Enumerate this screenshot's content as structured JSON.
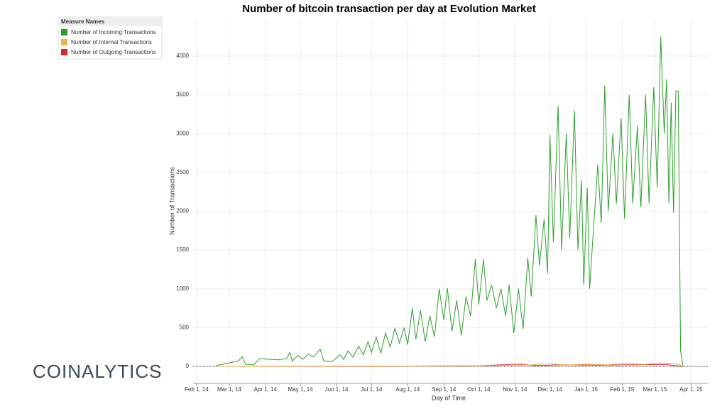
{
  "chart_data": {
    "type": "line",
    "title": "Number of bitcoin transaction per day at Evolution Market",
    "x_label": "Day of Time",
    "y_label": "Number of Transactions",
    "legend_title": "Measure Names",
    "legend_position": "upper-left",
    "logo": "COINALYTICS",
    "grid": true,
    "xlim": [
      "2014-01-29",
      "2015-04-16"
    ],
    "xticks": [
      {
        "value": "2014-02-01",
        "label": "Feb 1, 14"
      },
      {
        "value": "2014-03-01",
        "label": "Mar 1, 14"
      },
      {
        "value": "2014-04-01",
        "label": "Apr 1, 14"
      },
      {
        "value": "2014-05-01",
        "label": "May 1, 14"
      },
      {
        "value": "2014-06-01",
        "label": "Jun 1, 14"
      },
      {
        "value": "2014-07-01",
        "label": "Jul 1, 14"
      },
      {
        "value": "2014-08-01",
        "label": "Aug 1, 14"
      },
      {
        "value": "2014-09-01",
        "label": "Sep 1, 14"
      },
      {
        "value": "2014-10-01",
        "label": "Oct 1, 14"
      },
      {
        "value": "2014-11-01",
        "label": "Nov 1, 14"
      },
      {
        "value": "2014-12-01",
        "label": "Dec 1, 14"
      },
      {
        "value": "2015-01-01",
        "label": "Jan 1, 15"
      },
      {
        "value": "2015-02-01",
        "label": "Feb 1, 15"
      },
      {
        "value": "2015-03-01",
        "label": "Mar 1, 15"
      },
      {
        "value": "2015-04-01",
        "label": "Apr 1, 15"
      }
    ],
    "ylim": [
      -220,
      4467
    ],
    "yticks": [
      0,
      500,
      1000,
      1500,
      2000,
      2500,
      3000,
      3500,
      4000
    ],
    "series": [
      {
        "name": "Number of Incoming Transactions",
        "color": "#2ca02c",
        "x": [
          "2014-02-18",
          "2014-02-24",
          "2014-03-03",
          "2014-03-09",
          "2014-03-12",
          "2014-03-15",
          "2014-03-22",
          "2014-03-27",
          "2014-04-05",
          "2014-04-12",
          "2014-04-19",
          "2014-04-22",
          "2014-04-24",
          "2014-04-29",
          "2014-05-03",
          "2014-05-08",
          "2014-05-12",
          "2014-05-18",
          "2014-05-21",
          "2014-05-28",
          "2014-06-04",
          "2014-06-07",
          "2014-06-11",
          "2014-06-15",
          "2014-06-20",
          "2014-06-24",
          "2014-06-28",
          "2014-07-01",
          "2014-07-05",
          "2014-07-09",
          "2014-07-13",
          "2014-07-17",
          "2014-07-21",
          "2014-07-25",
          "2014-07-29",
          "2014-08-01",
          "2014-08-05",
          "2014-08-08",
          "2014-08-12",
          "2014-08-16",
          "2014-08-20",
          "2014-08-24",
          "2014-08-28",
          "2014-09-01",
          "2014-09-04",
          "2014-09-08",
          "2014-09-12",
          "2014-09-16",
          "2014-09-20",
          "2014-09-24",
          "2014-09-28",
          "2014-10-01",
          "2014-10-05",
          "2014-10-08",
          "2014-10-12",
          "2014-10-16",
          "2014-10-20",
          "2014-10-24",
          "2014-10-27",
          "2014-10-31",
          "2014-11-04",
          "2014-11-08",
          "2014-11-12",
          "2014-11-15",
          "2014-11-19",
          "2014-11-22",
          "2014-11-26",
          "2014-11-29",
          "2014-12-01",
          "2014-12-04",
          "2014-12-08",
          "2014-12-11",
          "2014-12-15",
          "2014-12-18",
          "2014-12-22",
          "2014-12-25",
          "2014-12-28",
          "2014-12-30",
          "2015-01-02",
          "2015-01-04",
          "2015-01-07",
          "2015-01-11",
          "2015-01-14",
          "2015-01-17",
          "2015-01-20",
          "2015-01-24",
          "2015-01-27",
          "2015-01-31",
          "2015-02-03",
          "2015-02-07",
          "2015-02-10",
          "2015-02-14",
          "2015-02-17",
          "2015-02-21",
          "2015-02-24",
          "2015-02-28",
          "2015-03-03",
          "2015-03-06",
          "2015-03-09",
          "2015-03-11",
          "2015-03-13",
          "2015-03-15",
          "2015-03-17",
          "2015-03-19",
          "2015-03-21",
          "2015-03-23",
          "2015-03-25"
        ],
        "values": [
          10,
          30,
          50,
          70,
          125,
          25,
          20,
          100,
          90,
          85,
          100,
          180,
          70,
          140,
          90,
          160,
          120,
          220,
          70,
          60,
          150,
          90,
          200,
          120,
          260,
          150,
          320,
          180,
          380,
          170,
          430,
          250,
          490,
          300,
          500,
          280,
          750,
          350,
          720,
          320,
          650,
          380,
          1000,
          600,
          1010,
          450,
          850,
          400,
          900,
          650,
          1380,
          800,
          1380,
          850,
          1050,
          750,
          1000,
          650,
          1050,
          430,
          1000,
          480,
          1400,
          900,
          1950,
          1300,
          1900,
          1200,
          2980,
          1600,
          3360,
          1500,
          3000,
          1650,
          3300,
          1500,
          2400,
          1050,
          2300,
          1000,
          1700,
          2600,
          1850,
          3620,
          2000,
          3000,
          2100,
          3200,
          1900,
          3500,
          2100,
          3100,
          2050,
          3500,
          2100,
          3600,
          2300,
          4250,
          3000,
          3700,
          2100,
          3400,
          1980,
          3550,
          3550,
          200,
          10
        ]
      },
      {
        "name": "Number of Internal Transactions",
        "color": "#f5b041",
        "x": [
          "2014-02-18",
          "2014-06-01",
          "2014-09-01",
          "2014-10-15",
          "2014-11-15",
          "2014-12-01",
          "2014-12-15",
          "2015-01-01",
          "2015-01-20",
          "2015-02-01",
          "2015-02-20",
          "2015-03-05",
          "2015-03-20",
          "2015-03-25"
        ],
        "values": [
          0,
          2,
          5,
          10,
          20,
          35,
          15,
          30,
          20,
          40,
          25,
          45,
          35,
          0
        ]
      },
      {
        "name": "Number of Outgoing Transactions",
        "color": "#d62728",
        "x": [
          "2014-02-18",
          "2014-07-01",
          "2014-10-01",
          "2014-11-05",
          "2014-11-20",
          "2014-12-10",
          "2015-01-10",
          "2015-02-10",
          "2015-03-10",
          "2015-03-25"
        ],
        "values": [
          0,
          2,
          8,
          30,
          10,
          20,
          15,
          20,
          25,
          0
        ]
      }
    ]
  }
}
